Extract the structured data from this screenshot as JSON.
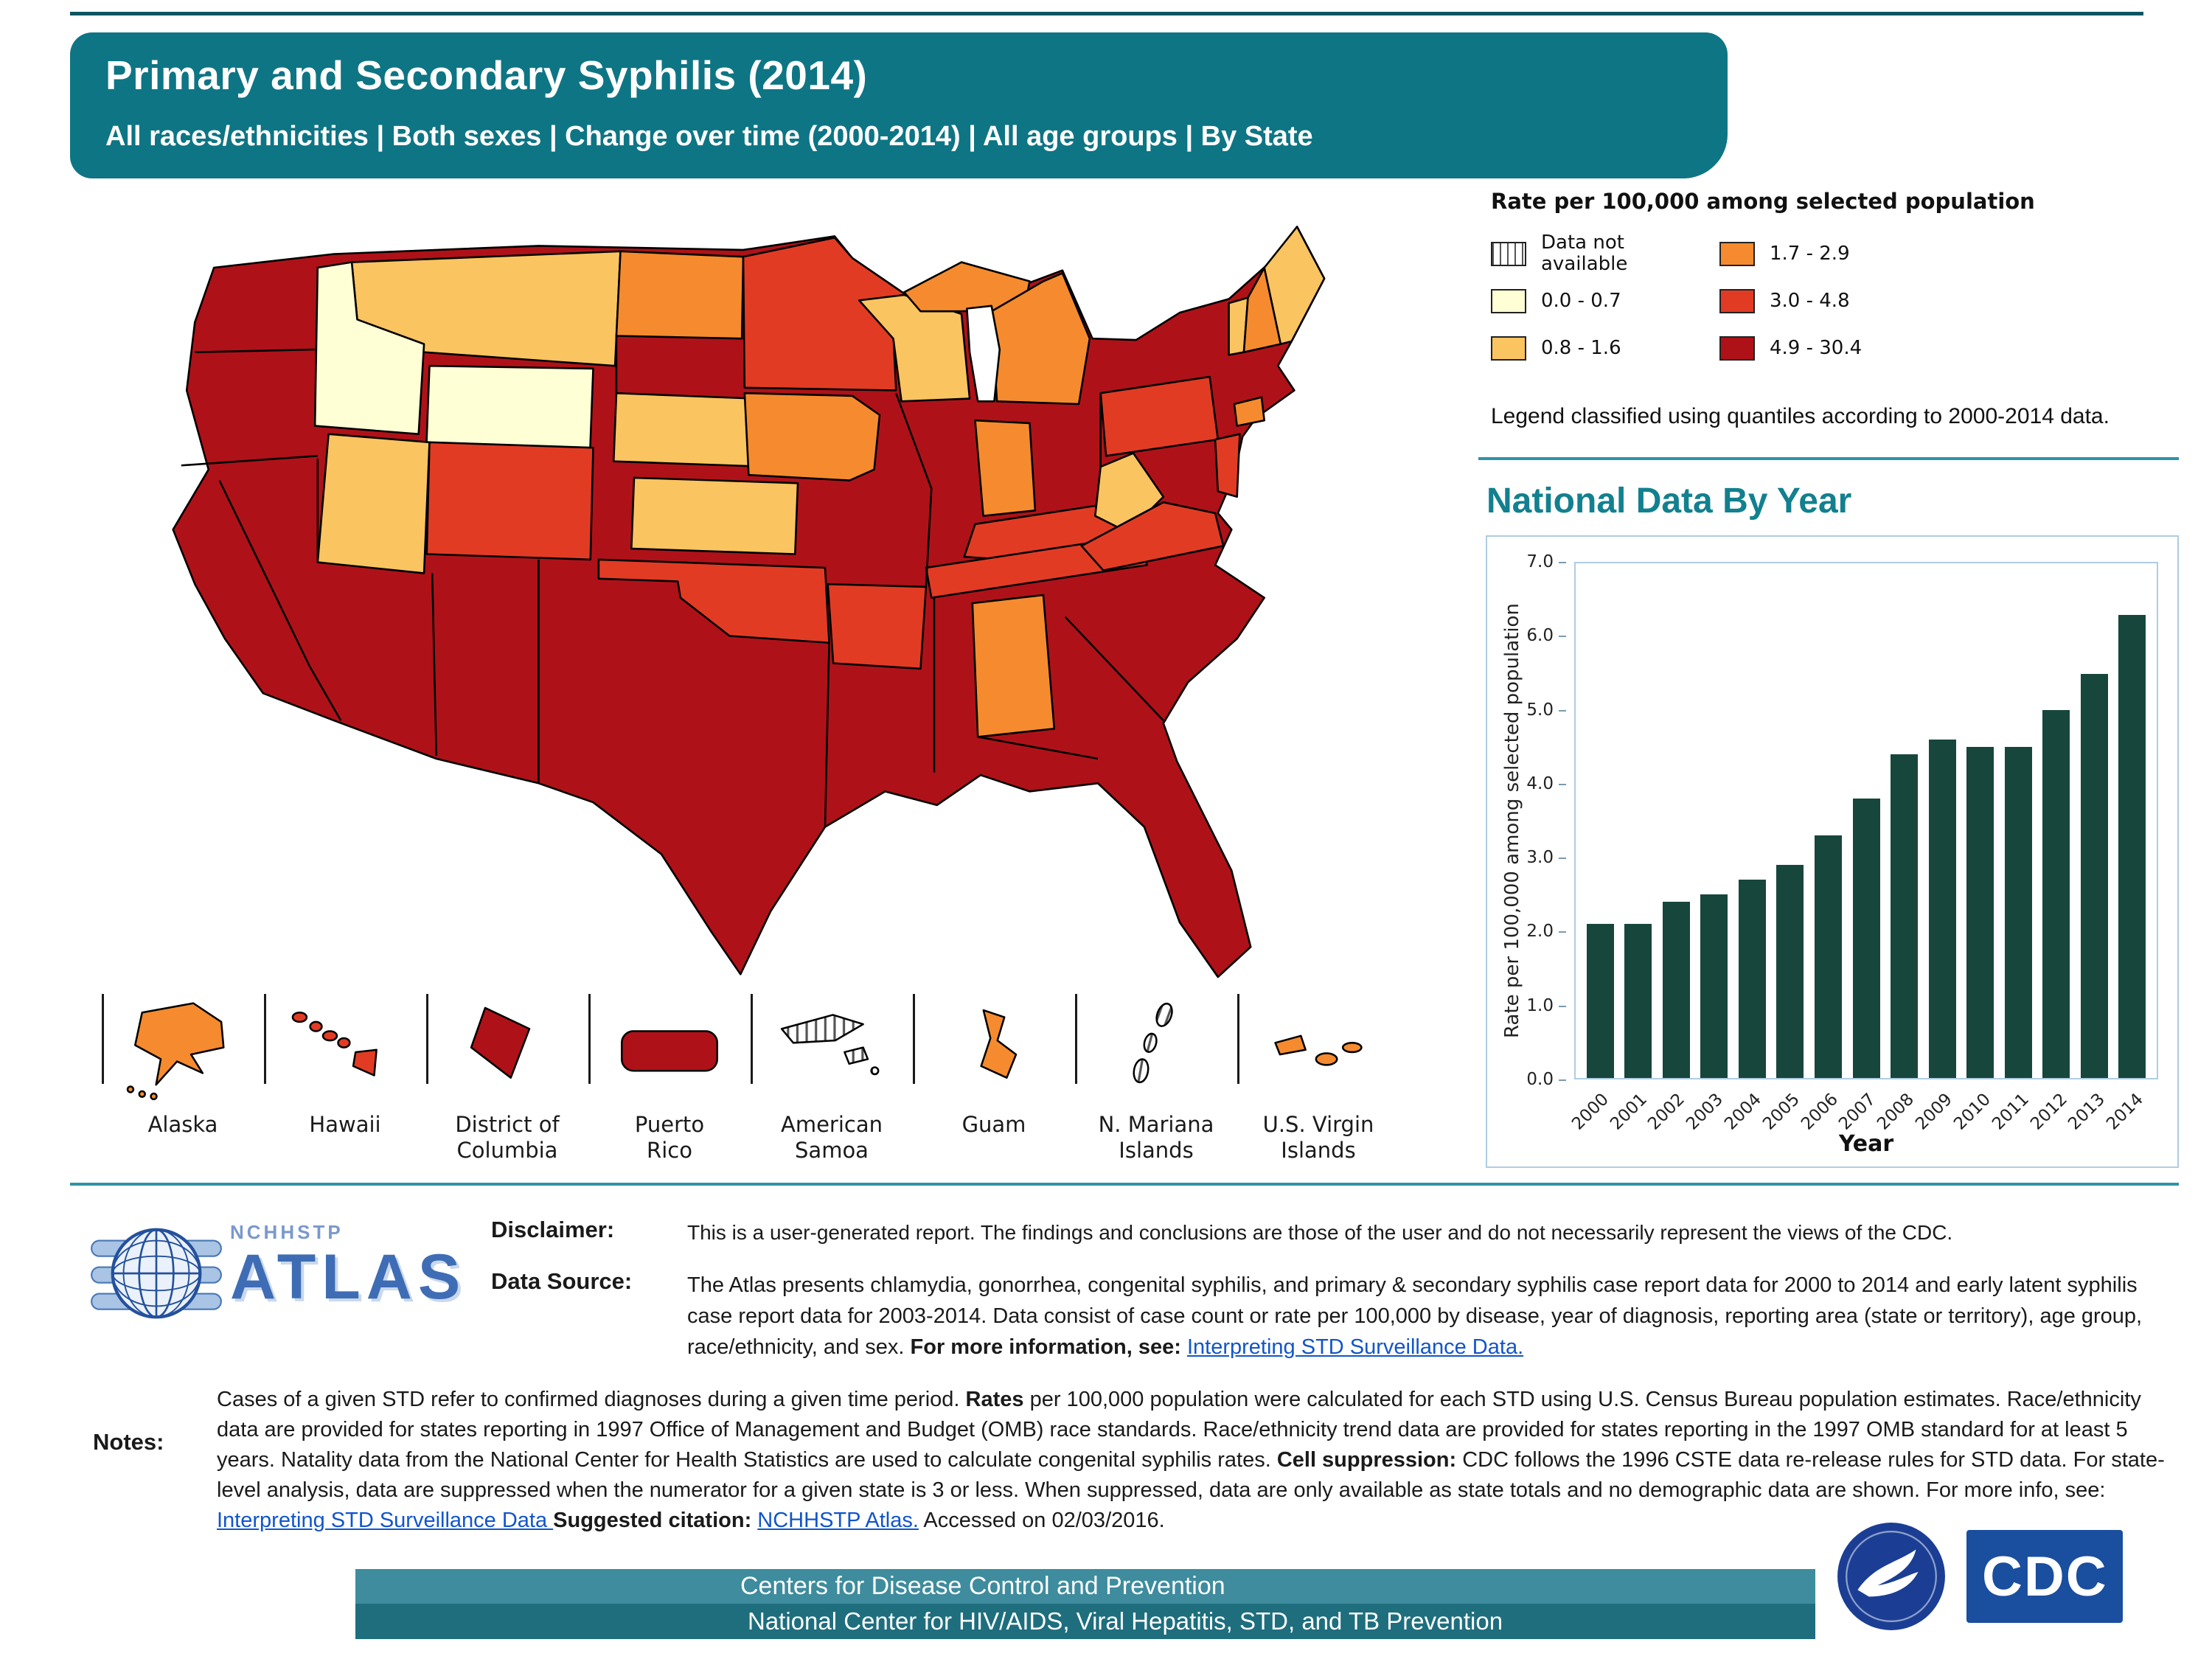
{
  "page": {
    "title": "Primary and Secondary Syphilis (2014)",
    "subtitle": "All races/ethnicities | Both sexes | Change over time (2000-2014) | All age groups | By State"
  },
  "colors": {
    "top_rule": "#0B5561",
    "header_bg": "#0E7584",
    "accent_line": "#2E93A8",
    "section_heading": "#12808F",
    "link": "#1155CC",
    "bar_color": "#17463C",
    "footer_bar_top": "#3E8C9E",
    "footer_bar_bottom": "#1E6E7E",
    "classes": {
      "na": "hatch",
      "c1": "#FFFFD6",
      "c2": "#FAC461",
      "c3": "#F58B2E",
      "c4": "#E23B24",
      "c5": "#AE1218"
    }
  },
  "legend": {
    "title": "Rate per 100,000 among selected population",
    "items": [
      {
        "label": "Data not available",
        "class": "na"
      },
      {
        "label": "0.0 - 0.7",
        "class": "c1"
      },
      {
        "label": "0.8 - 1.6",
        "class": "c2"
      },
      {
        "label": "1.7 - 2.9",
        "class": "c3"
      },
      {
        "label": "3.0 - 4.8",
        "class": "c4"
      },
      {
        "label": "4.9 - 30.4",
        "class": "c5"
      }
    ],
    "note": "Legend classified using quantiles according to 2000-2014 data."
  },
  "map": {
    "insets": [
      {
        "id": "AK",
        "label": "Alaska"
      },
      {
        "id": "HI",
        "label": "Hawaii"
      },
      {
        "id": "DC",
        "label": "District of\nColumbia"
      },
      {
        "id": "PR",
        "label": "Puerto\nRico"
      },
      {
        "id": "AS",
        "label": "American\nSamoa"
      },
      {
        "id": "GU",
        "label": "Guam"
      },
      {
        "id": "MP",
        "label": "N. Mariana\nIslands"
      },
      {
        "id": "VI",
        "label": "U.S. Virgin\nIslands"
      }
    ]
  },
  "chart_data": [
    {
      "type": "choropleth",
      "title": "Primary and Secondary Syphilis (2014) by State",
      "unit": "Rate per 100,000 among selected population",
      "class_labels": {
        "na": "Data not available",
        "c1": "0.0 - 0.7",
        "c2": "0.8 - 1.6",
        "c3": "1.7 - 2.9",
        "c4": "3.0 - 4.8",
        "c5": "4.9 - 30.4"
      },
      "state_classes": {
        "WA": "c5",
        "OR": "c5",
        "CA": "c5",
        "NV": "c5",
        "ID": "c1",
        "MT": "c2",
        "WY": "c1",
        "UT": "c2",
        "AZ": "c5",
        "CO": "c4",
        "NM": "c5",
        "TX": "c5",
        "ND": "c3",
        "SD": "c5",
        "NE": "c2",
        "KS": "c2",
        "OK": "c4",
        "MN": "c4",
        "IA": "c3",
        "MO": "c5",
        "AR": "c4",
        "LA": "c5",
        "WI": "c2",
        "IL": "c5",
        "MI": "c3",
        "IN": "c3",
        "OH": "c5",
        "KY": "c4",
        "TN": "c4",
        "MS": "c5",
        "AL": "c3",
        "GA": "c5",
        "FL": "c5",
        "SC": "c5",
        "NC": "c5",
        "VA": "c4",
        "WV": "c2",
        "PA": "c4",
        "NY": "c5",
        "NJ": "c4",
        "MD": "c5",
        "DE": "c5",
        "CT": "c3",
        "RI": "c5",
        "MA": "c5",
        "VT": "c2",
        "NH": "c3",
        "ME": "c2",
        "DC": "c5",
        "AK": "c3",
        "HI": "c4",
        "PR": "c5",
        "AS": "na",
        "GU": "c3",
        "MP": "na",
        "VI": "c3"
      }
    },
    {
      "type": "bar",
      "title": "National Data By Year",
      "categories": [
        "2000",
        "2001",
        "2002",
        "2003",
        "2004",
        "2005",
        "2006",
        "2007",
        "2008",
        "2009",
        "2010",
        "2011",
        "2012",
        "2013",
        "2014"
      ],
      "values": [
        2.1,
        2.1,
        2.4,
        2.5,
        2.7,
        2.9,
        3.3,
        3.8,
        4.4,
        4.6,
        4.5,
        4.5,
        5.0,
        5.5,
        6.3
      ],
      "xlabel": "Year",
      "ylabel": "Rate per 100,000 among selected population",
      "ylim": [
        0,
        7
      ],
      "yticks": [
        "0.0",
        "1.0",
        "2.0",
        "3.0",
        "4.0",
        "5.0",
        "6.0",
        "7.0"
      ],
      "grid": false,
      "legend_position": "none"
    }
  ],
  "footer": {
    "atlas_logo": {
      "nchhstp": "NCHHSTP",
      "atlas": "ATLAS"
    },
    "disclaimer_label": "Disclaimer:",
    "disclaimer_text": "This is a user-generated report. The findings and conclusions are those of the user and do not necessarily represent the views of the CDC.",
    "datasource_label": "Data Source:",
    "datasource_segments": [
      {
        "t": "The Atlas presents chlamydia, gonorrhea, congenital syphilis, and primary & secondary syphilis case report data for 2000 to 2014 and early latent syphilis case report data for 2003-2014. Data consist of case count or rate per 100,000 by disease, year of diagnosis, reporting area (state or territory), age group, race/ethnicity, and sex. "
      },
      {
        "t": "For more information, see: ",
        "b": true
      },
      {
        "t": "Interpreting STD Surveillance Data.",
        "link": true,
        "name": "interpreting-std-link"
      }
    ],
    "notes_label": "Notes:",
    "notes_segments": [
      {
        "t": "Cases of a given STD refer to confirmed diagnoses during a given time period. "
      },
      {
        "t": "Rates",
        "b": true
      },
      {
        "t": " per 100,000 population were calculated for each STD using U.S. Census Bureau population estimates. Race/ethnicity data are provided for states reporting in 1997 Office of Management and Budget (OMB) race standards. Race/ethnicity trend data are provided for states reporting in the 1997 OMB standard for at least 5 years. Natality data from the National Center for Health Statistics are used to calculate congenital syphilis rates. "
      },
      {
        "t": "Cell suppression:",
        "b": true
      },
      {
        "t": " CDC follows the 1996 CSTE data re-release rules for STD data. For state-level analysis, data are suppressed when the numerator for a given state is 3 or less. When suppressed, data are only available as state totals and no demographic data are shown. For more info, see: "
      },
      {
        "t": "Interpreting STD Surveillance Data ",
        "link": true,
        "name": "interpreting-std-link"
      },
      {
        "t": "Suggested citation: ",
        "b": true
      },
      {
        "t": "NCHHSTP Atlas.",
        "link": true,
        "name": "nchhstp-atlas-link"
      },
      {
        "t": " Accessed on 02/03/2016."
      }
    ],
    "bar1_text": "Centers for Disease Control and Prevention",
    "bar2_text": "National Center for HIV/AIDS, Viral Hepatitis, STD, and TB Prevention",
    "cdc_logo_text": "CDC"
  }
}
